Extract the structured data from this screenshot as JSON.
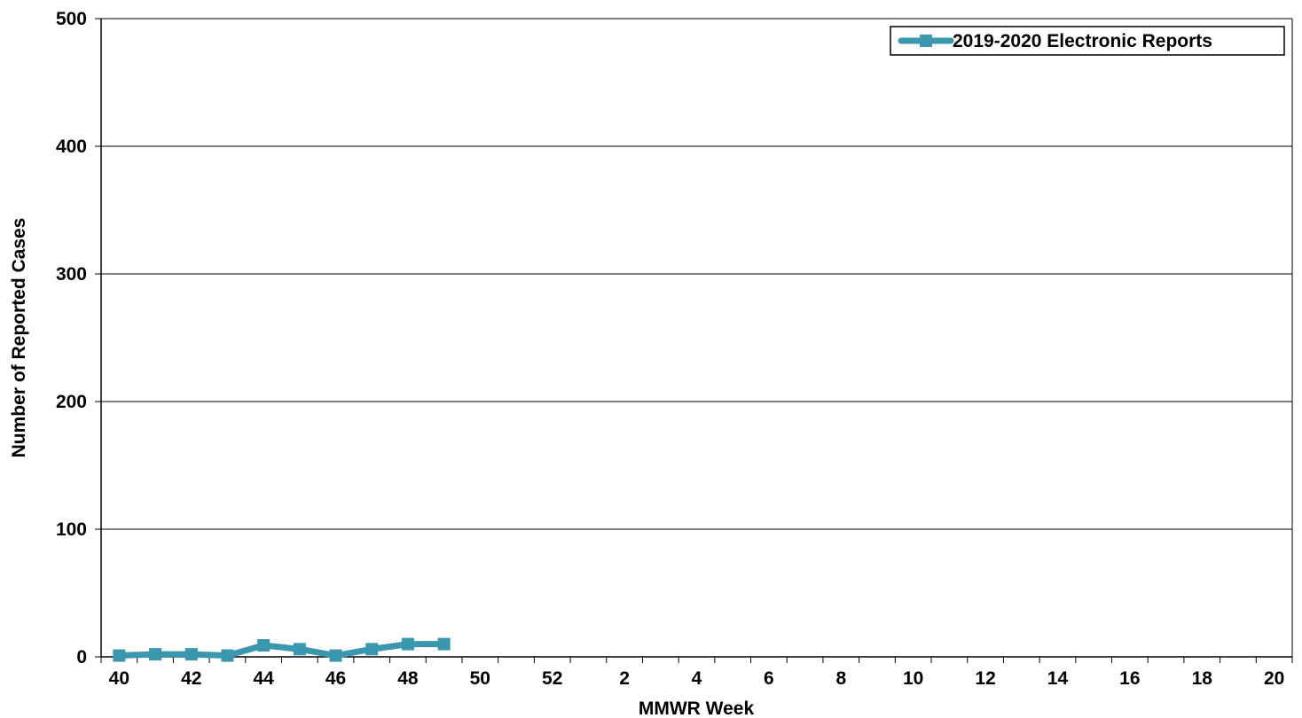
{
  "chart_data": {
    "type": "line",
    "title": "",
    "xlabel": "MMWR Week",
    "ylabel": "Number of Reported Cases",
    "x_categories": [
      "40",
      "41",
      "42",
      "43",
      "44",
      "45",
      "46",
      "47",
      "48",
      "49",
      "50",
      "51",
      "52",
      "1",
      "2",
      "3",
      "4",
      "5",
      "6",
      "7",
      "8",
      "9",
      "10",
      "11",
      "12",
      "13",
      "14",
      "15",
      "16",
      "17",
      "18",
      "19",
      "20"
    ],
    "x_tick_labels": [
      "40",
      "42",
      "44",
      "46",
      "48",
      "50",
      "52",
      "2",
      "4",
      "6",
      "8",
      "10",
      "12",
      "14",
      "16",
      "18",
      "20"
    ],
    "ylim": [
      0,
      500
    ],
    "y_ticks": [
      0,
      100,
      200,
      300,
      400,
      500
    ],
    "grid": true,
    "legend_position": "top-right",
    "series": [
      {
        "name": "2019-2020 Electronic Reports",
        "color": "#3A97AE",
        "marker": "square",
        "x": [
          "40",
          "41",
          "42",
          "43",
          "44",
          "45",
          "46",
          "47",
          "48",
          "49"
        ],
        "values": [
          1,
          2,
          2,
          1,
          9,
          6,
          1,
          6,
          10,
          10
        ]
      }
    ]
  }
}
